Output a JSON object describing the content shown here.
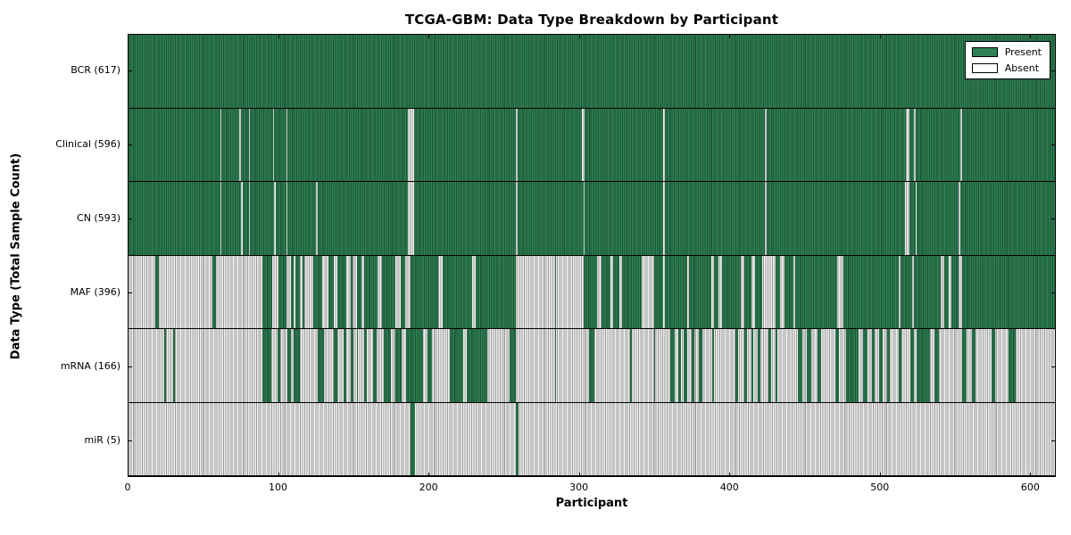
{
  "title": "TCGA-GBM: Data Type Breakdown by Participant",
  "legend": {
    "present_label": "Present",
    "absent_label": "Absent"
  },
  "colors": {
    "present_fill": "#2e8153",
    "present_line": "#1c5434",
    "absent_fill": "#f0f0f0",
    "absent_line": "#9a9a9a",
    "frame": "#000000"
  },
  "chart_data": {
    "type": "heatmap",
    "title": "TCGA-GBM: Data Type Breakdown by Participant",
    "xlabel": "Participant",
    "ylabel": "Data Type (Total Sample Count)",
    "x_ticks": [
      0,
      100,
      200,
      300,
      400,
      500,
      600
    ],
    "x_max": 617,
    "legend_entries": [
      "Present",
      "Absent"
    ],
    "legend_position": "upper right",
    "rows": [
      {
        "label": "BCR (617)",
        "data_type": "BCR",
        "total_count": 617,
        "present_ranges": [
          [
            0,
            617
          ]
        ]
      },
      {
        "label": "Clinical (596)",
        "data_type": "Clinical",
        "total_count": 596,
        "present_ranges": [
          [
            0,
            61
          ],
          [
            62,
            74
          ],
          [
            75,
            80
          ],
          [
            81,
            96
          ],
          [
            97,
            105
          ],
          [
            106,
            186
          ],
          [
            190,
            258
          ],
          [
            259,
            302
          ],
          [
            304,
            356
          ],
          [
            357,
            424
          ],
          [
            425,
            518
          ],
          [
            520,
            523
          ],
          [
            524,
            554
          ],
          [
            555,
            617
          ]
        ]
      },
      {
        "label": "CN (593)",
        "data_type": "CN",
        "total_count": 593,
        "present_ranges": [
          [
            0,
            61
          ],
          [
            62,
            75
          ],
          [
            76,
            80
          ],
          [
            81,
            97
          ],
          [
            98,
            105
          ],
          [
            106,
            125
          ],
          [
            126,
            186
          ],
          [
            190,
            258
          ],
          [
            259,
            303
          ],
          [
            304,
            356
          ],
          [
            357,
            424
          ],
          [
            425,
            517
          ],
          [
            520,
            524
          ],
          [
            525,
            553
          ],
          [
            554,
            617
          ]
        ]
      },
      {
        "label": "MAF (396)",
        "data_type": "MAF",
        "total_count": 396,
        "present_ranges": [
          [
            18,
            20
          ],
          [
            56,
            58
          ],
          [
            89,
            96
          ],
          [
            100,
            105
          ],
          [
            108,
            110
          ],
          [
            111,
            114
          ],
          [
            116,
            117
          ],
          [
            123,
            129
          ],
          [
            133,
            137
          ],
          [
            139,
            145
          ],
          [
            148,
            149
          ],
          [
            152,
            155
          ],
          [
            157,
            166
          ],
          [
            169,
            178
          ],
          [
            181,
            184
          ],
          [
            188,
            206
          ],
          [
            209,
            229
          ],
          [
            231,
            258
          ],
          [
            284,
            285
          ],
          [
            303,
            312
          ],
          [
            315,
            321
          ],
          [
            323,
            327
          ],
          [
            329,
            342
          ],
          [
            350,
            356
          ],
          [
            357,
            372
          ],
          [
            373,
            388
          ],
          [
            390,
            393
          ],
          [
            395,
            408
          ],
          [
            410,
            415
          ],
          [
            417,
            422
          ],
          [
            431,
            434
          ],
          [
            437,
            443
          ],
          [
            444,
            472
          ],
          [
            476,
            513
          ],
          [
            514,
            522
          ],
          [
            523,
            541
          ],
          [
            543,
            546
          ],
          [
            548,
            553
          ],
          [
            555,
            617
          ]
        ]
      },
      {
        "label": "mRNA (166)",
        "data_type": "mRNA",
        "total_count": 166,
        "present_ranges": [
          [
            24,
            25
          ],
          [
            30,
            31
          ],
          [
            89,
            95
          ],
          [
            99,
            101
          ],
          [
            106,
            108
          ],
          [
            110,
            114
          ],
          [
            126,
            130
          ],
          [
            137,
            139
          ],
          [
            143,
            145
          ],
          [
            148,
            150
          ],
          [
            152,
            153
          ],
          [
            157,
            159
          ],
          [
            163,
            165
          ],
          [
            170,
            175
          ],
          [
            178,
            182
          ],
          [
            185,
            196
          ],
          [
            199,
            202
          ],
          [
            214,
            223
          ],
          [
            225,
            239
          ],
          [
            254,
            258
          ],
          [
            284,
            285
          ],
          [
            307,
            310
          ],
          [
            334,
            335
          ],
          [
            350,
            351
          ],
          [
            361,
            364
          ],
          [
            366,
            368
          ],
          [
            370,
            372
          ],
          [
            375,
            377
          ],
          [
            380,
            382
          ],
          [
            389,
            390
          ],
          [
            404,
            406
          ],
          [
            410,
            412
          ],
          [
            415,
            416
          ],
          [
            419,
            421
          ],
          [
            426,
            428
          ],
          [
            431,
            432
          ],
          [
            446,
            449
          ],
          [
            452,
            455
          ],
          [
            459,
            461
          ],
          [
            471,
            473
          ],
          [
            478,
            486
          ],
          [
            489,
            492
          ],
          [
            495,
            497
          ],
          [
            500,
            502
          ],
          [
            505,
            507
          ],
          [
            513,
            515
          ],
          [
            521,
            523
          ],
          [
            525,
            534
          ],
          [
            537,
            540
          ],
          [
            555,
            558
          ],
          [
            562,
            564
          ],
          [
            575,
            577
          ],
          [
            586,
            591
          ]
        ]
      },
      {
        "label": "miR (5)",
        "data_type": "miR",
        "total_count": 5,
        "present_ranges": [
          [
            188,
            191
          ],
          [
            258,
            260
          ]
        ]
      }
    ]
  }
}
